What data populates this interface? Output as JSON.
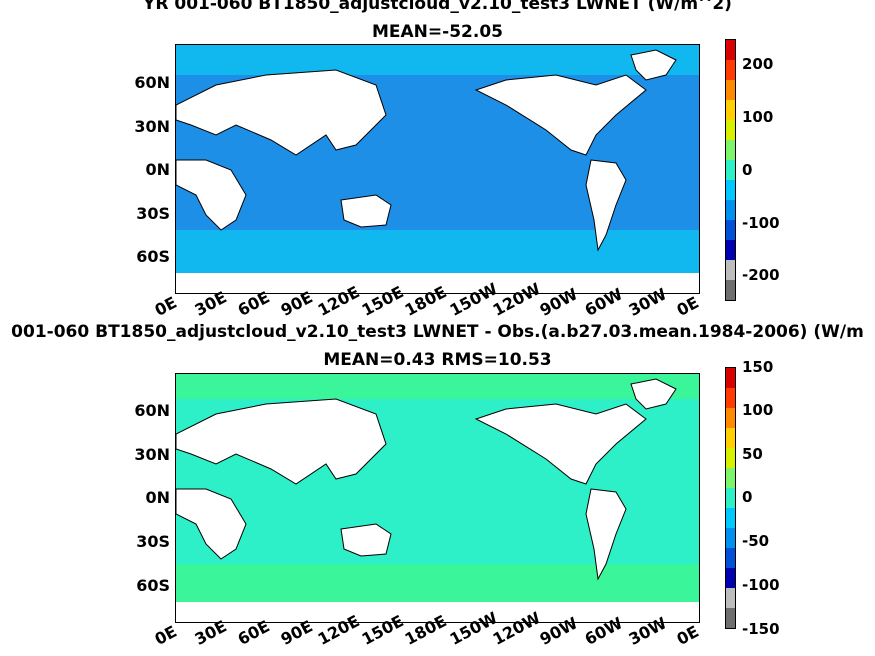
{
  "panels": [
    {
      "title_line1": "YR 001-060 BT1850_adjustcloud_v2.10_test3  LWNET (W/m^2)",
      "title_line2": "MEAN=-52.05",
      "colorbar_labels": [
        "200",
        "100",
        "0",
        "-100",
        "-200"
      ],
      "ocean_color": "#1e8fe6",
      "band_color": "#11b8f0",
      "colorbar_colors": [
        "#d90000",
        "#ff3b00",
        "#ff8a00",
        "#ffcf00",
        "#d6f000",
        "#7df56a",
        "#2fefc8",
        "#00c8ff",
        "#0090f0",
        "#0050d8",
        "#0000b0",
        "#bdbdbd",
        "#6e6e6e"
      ]
    },
    {
      "title_line1": "001-060 BT1850_adjustcloud_v2.10_test3 LWNET - Obs.(a.b27.03.mean.1984-2006) (W/m",
      "title_line2": "MEAN=0.43 RMS=10.53",
      "colorbar_labels": [
        "150",
        "100",
        "50",
        "0",
        "-50",
        "-100",
        "-150"
      ],
      "ocean_color": "#2ef0c8",
      "band_color": "#3af59a",
      "colorbar_colors": [
        "#d90000",
        "#ff3b00",
        "#ff8a00",
        "#ffcf00",
        "#d6f000",
        "#7df56a",
        "#2fefc8",
        "#00c8ff",
        "#0090f0",
        "#0050d8",
        "#0000b0",
        "#bdbdbd",
        "#6e6e6e"
      ]
    }
  ],
  "lat_labels": [
    "60N",
    "30N",
    "0N",
    "30S",
    "60S"
  ],
  "lon_labels": [
    "0E",
    "30E",
    "60E",
    "90E",
    "120E",
    "150E",
    "180E",
    "150W",
    "120W",
    "90W",
    "60W",
    "30W",
    "0E"
  ]
}
